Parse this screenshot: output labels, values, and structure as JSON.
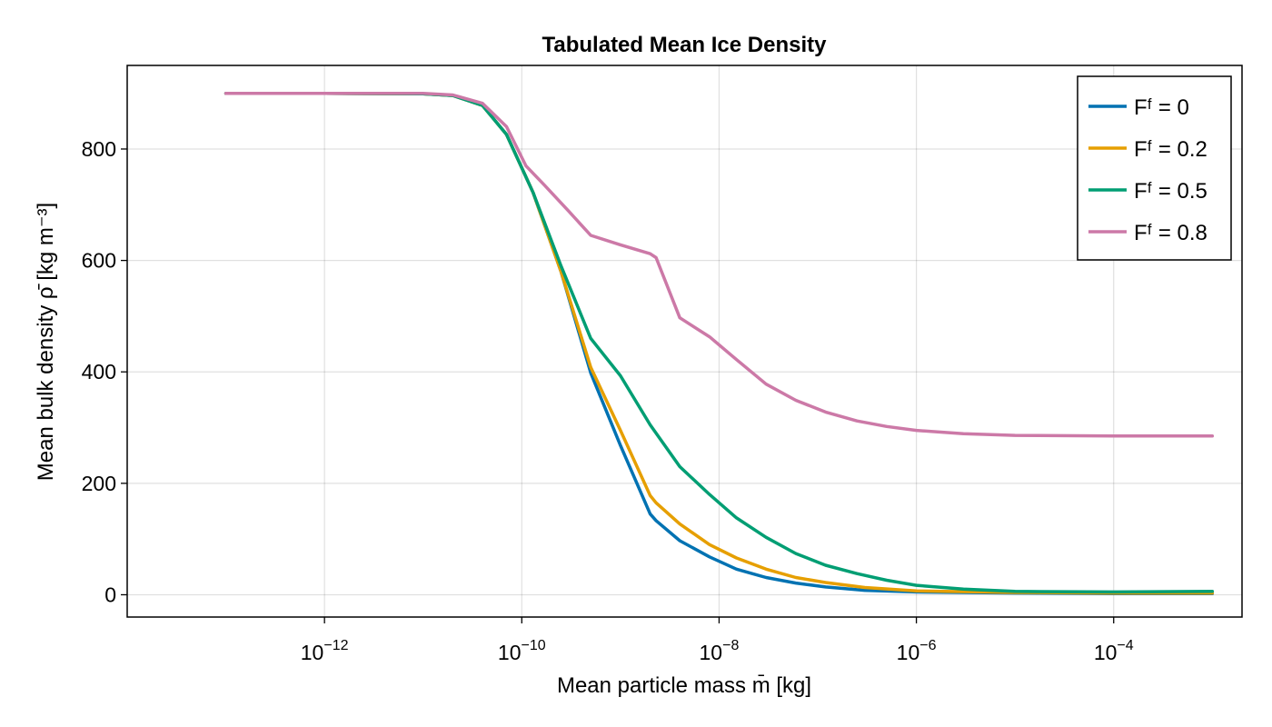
{
  "chart_data": {
    "type": "line",
    "title": "Tabulated Mean Ice Density",
    "xlabel": "Mean particle mass m̄ [kg]",
    "ylabel": "Mean bulk density ρ̄ [kg m⁻³]",
    "xscale": "log10",
    "xlim": [
      1e-14,
      0.002
    ],
    "ylim": [
      -40,
      950
    ],
    "x_ticks": [
      {
        "value": 1e-12,
        "base": "10",
        "exp": "−12"
      },
      {
        "value": 1e-10,
        "base": "10",
        "exp": "−10"
      },
      {
        "value": 1e-08,
        "base": "10",
        "exp": "−8"
      },
      {
        "value": 1e-06,
        "base": "10",
        "exp": "−6"
      },
      {
        "value": 0.0001,
        "base": "10",
        "exp": "−4"
      }
    ],
    "y_ticks": [
      {
        "value": 0,
        "label": "0"
      },
      {
        "value": 200,
        "label": "200"
      },
      {
        "value": 400,
        "label": "400"
      },
      {
        "value": 600,
        "label": "600"
      },
      {
        "value": 800,
        "label": "800"
      }
    ],
    "grid": true,
    "legend_position": "top-right",
    "series": [
      {
        "name": "Fᶠ = 0",
        "color": "#0072b2",
        "x": [
          1e-13,
          1e-12,
          1e-11,
          2e-11,
          4e-11,
          7e-11,
          1.3e-10,
          2.5e-10,
          5e-10,
          1e-09,
          2e-09,
          2.3e-09,
          4e-09,
          8e-09,
          1.5e-08,
          3e-08,
          6e-08,
          1.2e-07,
          3e-07,
          1e-06,
          1e-05,
          0.0001,
          0.001
        ],
        "y": [
          900,
          900,
          899,
          896,
          878,
          826,
          722,
          580,
          398,
          268,
          145,
          133,
          97,
          68,
          46,
          31,
          21,
          14,
          8,
          5,
          3,
          2,
          2
        ]
      },
      {
        "name": "Fᶠ = 0.2",
        "color": "#e69f00",
        "x": [
          1e-13,
          1e-12,
          1e-11,
          2e-11,
          4e-11,
          7e-11,
          1.3e-10,
          2.5e-10,
          5e-10,
          1e-09,
          2e-09,
          2.3e-09,
          4e-09,
          8e-09,
          1.5e-08,
          3e-08,
          6e-08,
          1.2e-07,
          3e-07,
          1e-06,
          1e-05,
          0.0001,
          0.001
        ],
        "y": [
          900,
          900,
          899,
          896,
          878,
          826,
          722,
          580,
          408,
          295,
          178,
          165,
          127,
          90,
          66,
          46,
          31,
          22,
          13,
          7,
          4,
          3,
          3
        ]
      },
      {
        "name": "Fᶠ = 0.5",
        "color": "#009e73",
        "x": [
          1e-13,
          1e-12,
          1e-11,
          2e-11,
          4e-11,
          7e-11,
          1.3e-10,
          2.5e-10,
          5e-10,
          1e-09,
          2e-09,
          4e-09,
          8e-09,
          1.5e-08,
          3e-08,
          6e-08,
          1.2e-07,
          2.5e-07,
          5e-07,
          1e-06,
          3e-06,
          1e-05,
          0.0001,
          0.001
        ],
        "y": [
          900,
          900,
          899,
          896,
          878,
          826,
          722,
          590,
          460,
          393,
          305,
          230,
          180,
          138,
          103,
          74,
          53,
          38,
          26,
          17,
          10,
          6,
          5,
          6
        ]
      },
      {
        "name": "Fᶠ = 0.8",
        "color": "#cc79a7",
        "x": [
          1e-13,
          1e-12,
          1e-11,
          2e-11,
          4e-11,
          7e-11,
          1.1e-10,
          1.7e-10,
          3e-10,
          5e-10,
          1e-09,
          2e-09,
          2.3e-09,
          4e-09,
          8e-09,
          1.5e-08,
          3e-08,
          6e-08,
          1.2e-07,
          2.5e-07,
          5e-07,
          1e-06,
          3e-06,
          1e-05,
          0.0001,
          0.001
        ],
        "y": [
          900,
          900,
          900,
          897,
          882,
          840,
          770,
          735,
          688,
          645,
          628,
          612,
          605,
          497,
          463,
          422,
          378,
          349,
          328,
          312,
          302,
          295,
          289,
          286,
          285,
          285
        ]
      }
    ]
  }
}
